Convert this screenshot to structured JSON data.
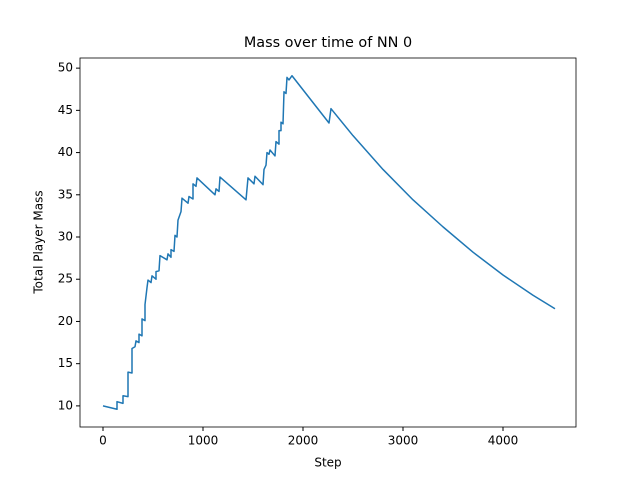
{
  "chart_data": {
    "type": "line",
    "title": "Mass over time of NN 0",
    "x_label": "Step",
    "y_label": "Total Player Mass",
    "xlim": [
      -230,
      4730
    ],
    "ylim": [
      7.5,
      51.2
    ],
    "xticks": [
      0,
      1000,
      2000,
      3000,
      4000
    ],
    "yticks": [
      10,
      15,
      20,
      25,
      30,
      35,
      40,
      45,
      50
    ],
    "series": [
      {
        "name": "NN 0",
        "color": "#1f77b4",
        "x": [
          0,
          140,
          140,
          200,
          200,
          250,
          250,
          290,
          290,
          320,
          330,
          360,
          360,
          390,
          390,
          420,
          420,
          440,
          450,
          480,
          490,
          530,
          530,
          560,
          570,
          640,
          650,
          680,
          680,
          710,
          720,
          740,
          750,
          780,
          790,
          850,
          860,
          900,
          900,
          930,
          940,
          1120,
          1130,
          1160,
          1170,
          1430,
          1440,
          1450,
          1510,
          1520,
          1600,
          1610,
          1630,
          1640,
          1660,
          1670,
          1720,
          1730,
          1760,
          1760,
          1780,
          1780,
          1800,
          1810,
          1830,
          1840,
          1860,
          1890,
          2260,
          2280,
          2500,
          2800,
          3100,
          3400,
          3700,
          4000,
          4300,
          4520
        ],
        "values": [
          10,
          9.6,
          10.5,
          10.3,
          11.2,
          11.1,
          14,
          13.9,
          16.8,
          17,
          17.7,
          17.5,
          18.5,
          18.3,
          20.3,
          20.1,
          22,
          24,
          24.9,
          24.6,
          25.4,
          25,
          25.9,
          26,
          27.8,
          27.3,
          28,
          27.6,
          28.5,
          28.3,
          30.2,
          30,
          32,
          33,
          34.6,
          34,
          34.8,
          34.5,
          36.3,
          36,
          37,
          35,
          35.7,
          35.4,
          37.1,
          34.4,
          35.7,
          37,
          36.3,
          37.2,
          36.2,
          38,
          38.5,
          40,
          39.8,
          40.3,
          39.6,
          41.3,
          41,
          42.6,
          42.6,
          43.6,
          43.4,
          47.2,
          47,
          48.9,
          48.6,
          49.1,
          43.5,
          45.2,
          42,
          38,
          34.4,
          31.2,
          28.2,
          25.5,
          23.1,
          21.5
        ]
      }
    ]
  }
}
